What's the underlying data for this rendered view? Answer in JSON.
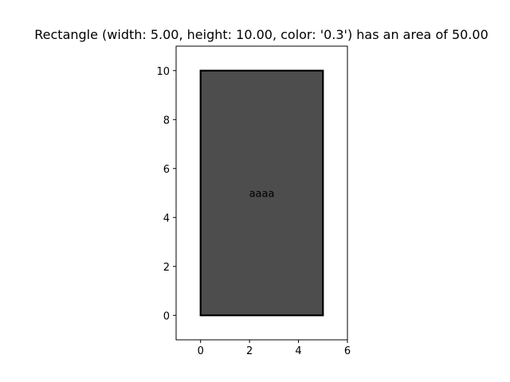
{
  "chart_data": {
    "type": "other",
    "title": "Rectangle (width: 5.00, height: 10.00, color: '0.3') has an area of 50.00",
    "xlabel": "",
    "ylabel": "",
    "xlim": [
      -1,
      6
    ],
    "ylim": [
      -1,
      11
    ],
    "x_ticks": [
      0,
      2,
      4,
      6
    ],
    "y_ticks": [
      0,
      2,
      4,
      6,
      8,
      10
    ],
    "grid": false,
    "rectangle": {
      "x": 0,
      "y": 0,
      "width": 5,
      "height": 10,
      "fill": "#4d4d4d",
      "edge_color": "#000000",
      "label": "aaaa",
      "label_x": 2.5,
      "label_y": 5
    }
  }
}
